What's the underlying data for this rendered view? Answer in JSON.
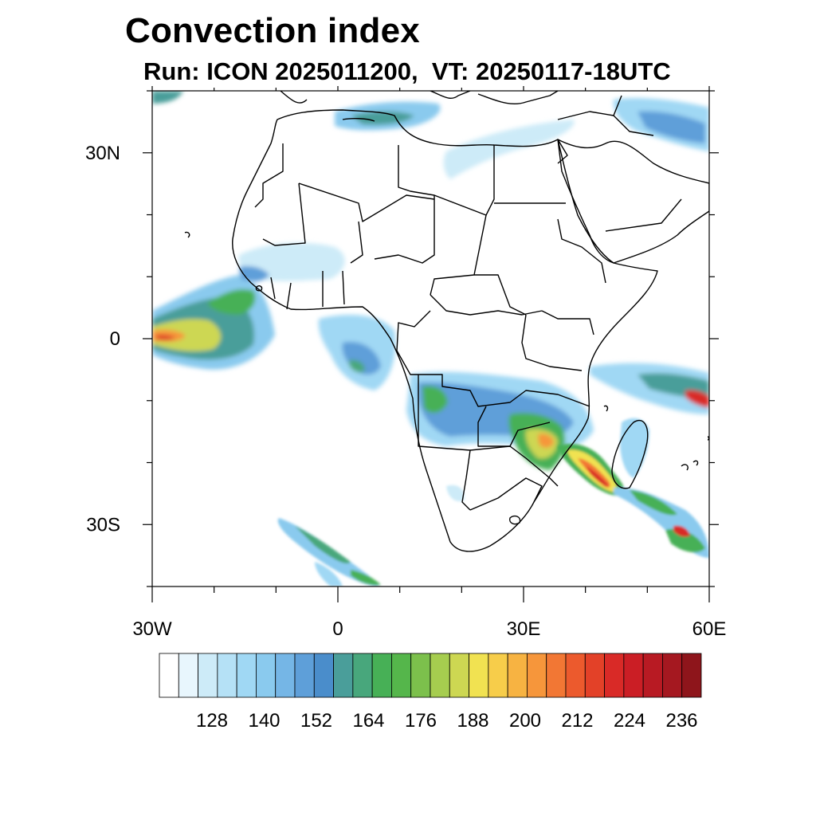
{
  "title": "Convection index",
  "subtitle": "Run: ICON 2025011200,  VT: 20250117-18UTC",
  "axes": {
    "lon_range": [
      -30,
      60
    ],
    "lat_range": [
      -40,
      40
    ],
    "lat_ticks": [
      {
        "value": 30,
        "label": "30N"
      },
      {
        "value": 0,
        "label": "0"
      },
      {
        "value": -30,
        "label": "30S"
      }
    ],
    "lon_ticks": [
      {
        "value": -30,
        "label": "30W"
      },
      {
        "value": 0,
        "label": "0"
      },
      {
        "value": 30,
        "label": "30E"
      },
      {
        "value": 60,
        "label": "60E"
      }
    ]
  },
  "colorbar": {
    "colors": [
      "#ffffff",
      "#e8f6fd",
      "#cdebf8",
      "#b5e1f6",
      "#a0d8f4",
      "#8acaee",
      "#75b6e6",
      "#5e9fd9",
      "#4a8dcb",
      "#4a9e9a",
      "#48a77c",
      "#47b056",
      "#55b64b",
      "#7cc04c",
      "#a6cd4f",
      "#cdd752",
      "#f1e251",
      "#f7cd4a",
      "#f7b342",
      "#f6963b",
      "#f27734",
      "#ec5a2d",
      "#e34128",
      "#d92a27",
      "#cb1e25",
      "#b81a23",
      "#a51820",
      "#8e151b"
    ],
    "labels": [
      "128",
      "140",
      "152",
      "164",
      "176",
      "188",
      "200",
      "212",
      "224",
      "236"
    ]
  },
  "colors": {
    "coast": "#000000",
    "frame": "#000000"
  }
}
